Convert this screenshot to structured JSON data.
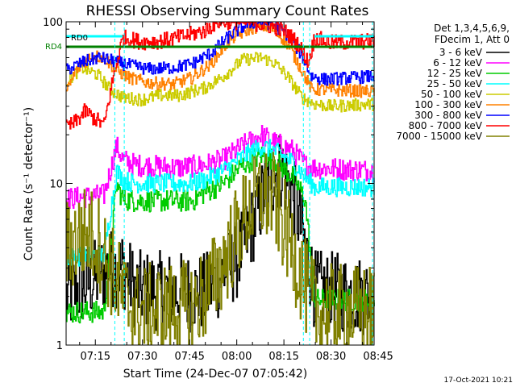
{
  "chart_data": {
    "type": "line",
    "title": "RHESSI Observing Summary Count Rates",
    "xlabel": "Start Time (24-Dec-07 07:05:42)",
    "ylabel": "Count Rate (s⁻¹ detector⁻¹)",
    "yscale": "log",
    "ylim": [
      1,
      100
    ],
    "xlim_minutes": [
      0,
      98
    ],
    "grid": false,
    "x_tick_labels": [
      "07:15",
      "07:30",
      "07:45",
      "08:00",
      "08:15",
      "08:30",
      "08:45"
    ],
    "y_tick_labels": [
      "1",
      "10",
      "100"
    ],
    "legend_position": "right",
    "legend_header": [
      "Det 1,3,4,5,6,9,",
      "FDecim 1, Att 0"
    ],
    "timestamp": "17-Oct-2021 10:21",
    "state_flags": [
      {
        "name": "RD0",
        "color": "#00ffff",
        "segments": [
          [
            0,
            18
          ],
          [
            79,
            98
          ]
        ]
      },
      {
        "name": "RD4",
        "color": "#008000",
        "segments": [
          [
            0,
            98
          ]
        ]
      }
    ],
    "vertical_markers": [
      15.5,
      18.5,
      75.5,
      77.5,
      97.5
    ],
    "series": [
      {
        "name": "3 - 6 keV",
        "color": "#000000",
        "noise": 0.25,
        "points": [
          [
            0,
            2
          ],
          [
            8,
            2.5
          ],
          [
            14,
            3
          ],
          [
            18,
            3
          ],
          [
            22,
            2.2
          ],
          [
            44,
            2.1
          ],
          [
            54,
            3.3
          ],
          [
            60,
            6
          ],
          [
            64,
            10
          ],
          [
            68,
            12.5
          ],
          [
            72,
            9
          ],
          [
            76,
            4
          ],
          [
            79,
            2.2
          ],
          [
            98,
            2
          ]
        ]
      },
      {
        "name": "6 - 12 keV",
        "color": "#ff00ff",
        "noise": 0.07,
        "points": [
          [
            0,
            8
          ],
          [
            12,
            8.5
          ],
          [
            16,
            17
          ],
          [
            18,
            14
          ],
          [
            22,
            13
          ],
          [
            36,
            12.5
          ],
          [
            44,
            13
          ],
          [
            50,
            14
          ],
          [
            56,
            17
          ],
          [
            62,
            20
          ],
          [
            66,
            18
          ],
          [
            72,
            16
          ],
          [
            76,
            13
          ],
          [
            79,
            12.5
          ],
          [
            98,
            12
          ]
        ]
      },
      {
        "name": "12 - 25 keV",
        "color": "#00cc00",
        "noise": 0.07,
        "points": [
          [
            0,
            1.6
          ],
          [
            12,
            1.6
          ],
          [
            16,
            9.8
          ],
          [
            18,
            8
          ],
          [
            22,
            7.8
          ],
          [
            40,
            7.8
          ],
          [
            44,
            8.8
          ],
          [
            50,
            10
          ],
          [
            56,
            13
          ],
          [
            62,
            15
          ],
          [
            66,
            14
          ],
          [
            72,
            11
          ],
          [
            76,
            8
          ],
          [
            79,
            1.9
          ],
          [
            98,
            1.9
          ]
        ]
      },
      {
        "name": "25 - 50 keV",
        "color": "#00ffff",
        "noise": 0.06,
        "points": [
          [
            0,
            3.5
          ],
          [
            12,
            3.6
          ],
          [
            16,
            12
          ],
          [
            18,
            10.5
          ],
          [
            22,
            10
          ],
          [
            40,
            10
          ],
          [
            44,
            10.5
          ],
          [
            50,
            12
          ],
          [
            56,
            14.5
          ],
          [
            62,
            17
          ],
          [
            66,
            16
          ],
          [
            72,
            13.5
          ],
          [
            76,
            11
          ],
          [
            79,
            9.5
          ],
          [
            98,
            9.5
          ]
        ]
      },
      {
        "name": "50 - 100 keV",
        "color": "#cccc00",
        "noise": 0.04,
        "points": [
          [
            0,
            43
          ],
          [
            5,
            52
          ],
          [
            10,
            47
          ],
          [
            14,
            38
          ],
          [
            18,
            34
          ],
          [
            24,
            33
          ],
          [
            30,
            35
          ],
          [
            36,
            35
          ],
          [
            40,
            37
          ],
          [
            44,
            39
          ],
          [
            50,
            46
          ],
          [
            56,
            58
          ],
          [
            62,
            60
          ],
          [
            66,
            56
          ],
          [
            70,
            47
          ],
          [
            75,
            34
          ],
          [
            79,
            31
          ],
          [
            84,
            30
          ],
          [
            98,
            31
          ]
        ]
      },
      {
        "name": "100 - 300 keV",
        "color": "#ff8000",
        "noise": 0.04,
        "points": [
          [
            0,
            36
          ],
          [
            3,
            50
          ],
          [
            8,
            62
          ],
          [
            12,
            60
          ],
          [
            16,
            50
          ],
          [
            20,
            45
          ],
          [
            26,
            42
          ],
          [
            34,
            41
          ],
          [
            40,
            45
          ],
          [
            46,
            55
          ],
          [
            52,
            78
          ],
          [
            58,
            90
          ],
          [
            62,
            95
          ],
          [
            66,
            90
          ],
          [
            70,
            75
          ],
          [
            75,
            50
          ],
          [
            78,
            38
          ],
          [
            82,
            38
          ],
          [
            98,
            37
          ]
        ]
      },
      {
        "name": "300 - 800 keV",
        "color": "#0000ff",
        "noise": 0.04,
        "points": [
          [
            0,
            50
          ],
          [
            5,
            56
          ],
          [
            10,
            60
          ],
          [
            14,
            58
          ],
          [
            18,
            55
          ],
          [
            26,
            51
          ],
          [
            34,
            52
          ],
          [
            40,
            55
          ],
          [
            46,
            64
          ],
          [
            52,
            82
          ],
          [
            58,
            98
          ],
          [
            62,
            100
          ],
          [
            66,
            96
          ],
          [
            70,
            84
          ],
          [
            75,
            62
          ],
          [
            78,
            46
          ],
          [
            82,
            44
          ],
          [
            98,
            46
          ]
        ]
      },
      {
        "name": "800 - 7000 keV",
        "color": "#ff0000",
        "noise": 0.05,
        "points": [
          [
            0,
            22
          ],
          [
            3,
            24
          ],
          [
            6,
            28
          ],
          [
            8,
            26
          ],
          [
            12,
            23
          ],
          [
            15,
            46
          ],
          [
            18,
            80
          ],
          [
            24,
            75
          ],
          [
            30,
            76
          ],
          [
            36,
            80
          ],
          [
            40,
            84
          ],
          [
            44,
            88
          ],
          [
            48,
            100
          ],
          [
            52,
            100
          ],
          [
            58,
            100
          ],
          [
            62,
            96
          ],
          [
            66,
            93
          ],
          [
            70,
            86
          ],
          [
            74,
            72
          ],
          [
            77,
            56
          ],
          [
            79,
            80
          ],
          [
            84,
            74
          ],
          [
            98,
            76
          ]
        ]
      },
      {
        "name": "7000 - 15000 keV",
        "color": "#808000",
        "noise": 0.3,
        "points": [
          [
            0,
            4
          ],
          [
            6,
            5
          ],
          [
            10,
            4.5
          ],
          [
            14,
            3
          ],
          [
            18,
            2
          ],
          [
            22,
            1.6
          ],
          [
            40,
            1.7
          ],
          [
            46,
            2.3
          ],
          [
            52,
            4
          ],
          [
            58,
            7
          ],
          [
            62,
            8.5
          ],
          [
            66,
            8
          ],
          [
            70,
            5
          ],
          [
            74,
            3
          ],
          [
            77,
            2
          ],
          [
            80,
            1.6
          ],
          [
            98,
            1.6
          ]
        ]
      }
    ]
  }
}
